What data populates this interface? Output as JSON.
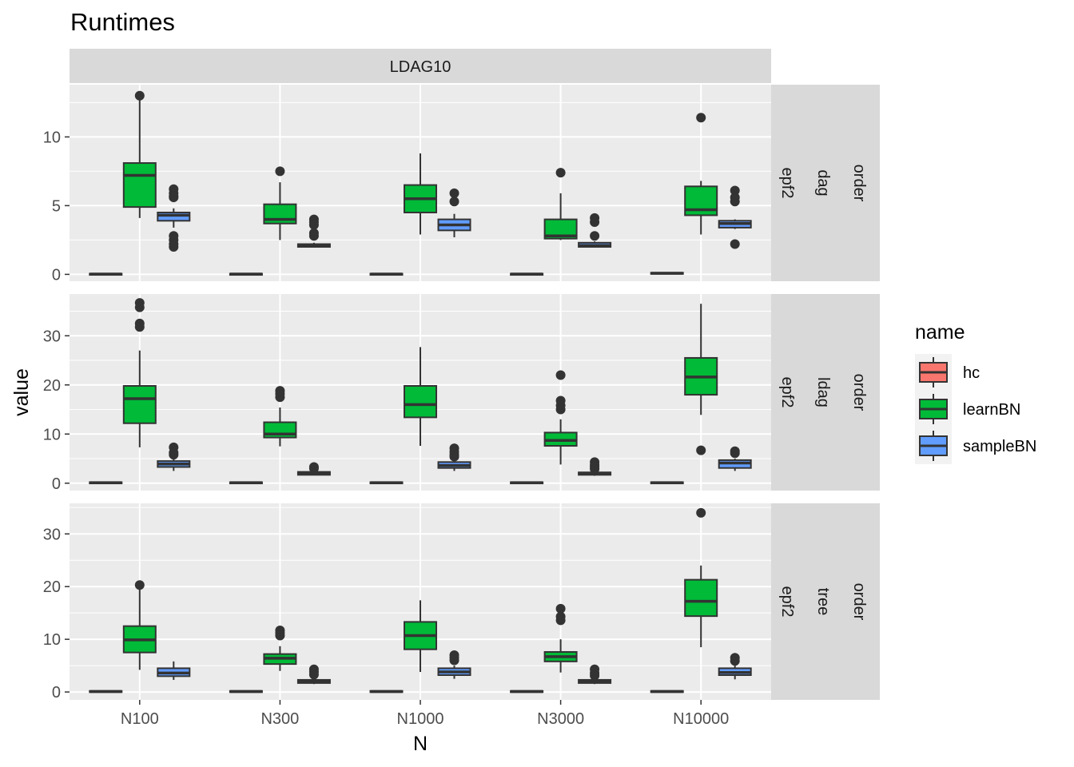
{
  "chart_data": {
    "type": "box",
    "title": "Runtimes",
    "xlabel": "N",
    "ylabel": "value",
    "categories": [
      "N100",
      "N300",
      "N1000",
      "N3000",
      "N10000"
    ],
    "column_strip": "LDAG10",
    "legend": {
      "title": "name",
      "placement": "right",
      "entries": [
        {
          "name": "hc",
          "color": "#F8766D"
        },
        {
          "name": "learnBN",
          "color": "#00BA38"
        },
        {
          "name": "sampleBN",
          "color": "#619CFF"
        }
      ]
    },
    "panels": [
      {
        "strip": [
          "epf2",
          "dag",
          "order"
        ],
        "ylim": [
          -0.5,
          13.8
        ],
        "yticks": [
          0,
          5,
          10
        ],
        "boxes": {
          "hc": [
            {
              "min": 0.0,
              "q1": 0.0,
              "median": 0.02,
              "q3": 0.05,
              "max": 0.05,
              "outliers": []
            },
            {
              "min": 0.0,
              "q1": 0.0,
              "median": 0.02,
              "q3": 0.05,
              "max": 0.05,
              "outliers": []
            },
            {
              "min": 0.0,
              "q1": 0.0,
              "median": 0.02,
              "q3": 0.05,
              "max": 0.05,
              "outliers": []
            },
            {
              "min": 0.0,
              "q1": 0.0,
              "median": 0.02,
              "q3": 0.05,
              "max": 0.05,
              "outliers": []
            },
            {
              "min": 0.05,
              "q1": 0.05,
              "median": 0.08,
              "q3": 0.12,
              "max": 0.12,
              "outliers": []
            }
          ],
          "learnBN": [
            {
              "min": 4.1,
              "q1": 4.9,
              "median": 7.2,
              "q3": 8.1,
              "max": 13.0,
              "outliers": [
                13.0
              ]
            },
            {
              "min": 2.5,
              "q1": 3.7,
              "median": 4.0,
              "q3": 5.1,
              "max": 6.7,
              "outliers": [
                7.5
              ]
            },
            {
              "min": 2.9,
              "q1": 4.5,
              "median": 5.5,
              "q3": 6.5,
              "max": 8.8,
              "outliers": []
            },
            {
              "min": 2.5,
              "q1": 2.6,
              "median": 2.8,
              "q3": 4.0,
              "max": 5.9,
              "outliers": [
                7.4
              ]
            },
            {
              "min": 2.9,
              "q1": 4.3,
              "median": 4.7,
              "q3": 6.4,
              "max": 6.8,
              "outliers": [
                11.4
              ]
            }
          ],
          "sampleBN": [
            {
              "min": 3.4,
              "q1": 3.9,
              "median": 4.3,
              "q3": 4.5,
              "max": 4.8,
              "outliers": [
                6.2,
                5.9,
                5.7,
                5.6,
                2.8,
                2.5,
                2.2,
                2.0
              ]
            },
            {
              "min": 2.0,
              "q1": 2.0,
              "median": 2.1,
              "q3": 2.2,
              "max": 2.3,
              "outliers": [
                4.0,
                3.8,
                3.6,
                3.0,
                2.8
              ]
            },
            {
              "min": 2.7,
              "q1": 3.2,
              "median": 3.6,
              "q3": 4.0,
              "max": 4.4,
              "outliers": [
                5.9,
                5.3
              ]
            },
            {
              "min": 2.0,
              "q1": 2.0,
              "median": 2.1,
              "q3": 2.3,
              "max": 2.4,
              "outliers": [
                4.1,
                3.8,
                2.8
              ]
            },
            {
              "min": 3.3,
              "q1": 3.4,
              "median": 3.7,
              "q3": 3.9,
              "max": 4.0,
              "outliers": [
                6.1,
                5.6,
                5.3,
                2.2
              ]
            }
          ]
        }
      },
      {
        "strip": [
          "epf2",
          "ldag",
          "order"
        ],
        "ylim": [
          -1.5,
          38.5
        ],
        "yticks": [
          0,
          10,
          20,
          30
        ],
        "boxes": {
          "hc": [
            {
              "min": 0.0,
              "q1": 0.0,
              "median": 0.1,
              "q3": 0.2,
              "max": 0.2,
              "outliers": []
            },
            {
              "min": 0.0,
              "q1": 0.0,
              "median": 0.1,
              "q3": 0.2,
              "max": 0.2,
              "outliers": []
            },
            {
              "min": 0.0,
              "q1": 0.0,
              "median": 0.1,
              "q3": 0.2,
              "max": 0.2,
              "outliers": []
            },
            {
              "min": 0.0,
              "q1": 0.0,
              "median": 0.1,
              "q3": 0.2,
              "max": 0.2,
              "outliers": []
            },
            {
              "min": 0.0,
              "q1": 0.0,
              "median": 0.1,
              "q3": 0.2,
              "max": 0.2,
              "outliers": []
            }
          ],
          "learnBN": [
            {
              "min": 7.3,
              "q1": 12.2,
              "median": 17.2,
              "q3": 19.8,
              "max": 27.0,
              "outliers": [
                36.7,
                35.8,
                32.5,
                31.8
              ]
            },
            {
              "min": 7.5,
              "q1": 9.3,
              "median": 10.0,
              "q3": 12.4,
              "max": 15.4,
              "outliers": [
                18.8,
                18.2,
                17.5
              ]
            },
            {
              "min": 7.6,
              "q1": 13.4,
              "median": 16.0,
              "q3": 19.8,
              "max": 27.7,
              "outliers": []
            },
            {
              "min": 3.8,
              "q1": 7.6,
              "median": 8.7,
              "q3": 10.3,
              "max": 13.0,
              "outliers": [
                22.0,
                16.8,
                15.8,
                15.0
              ]
            },
            {
              "min": 13.9,
              "q1": 18.0,
              "median": 21.6,
              "q3": 25.5,
              "max": 36.5,
              "outliers": [
                6.7
              ]
            }
          ],
          "sampleBN": [
            {
              "min": 2.5,
              "q1": 3.3,
              "median": 3.9,
              "q3": 4.5,
              "max": 5.0,
              "outliers": [
                7.3,
                6.2,
                5.8
              ]
            },
            {
              "min": 1.6,
              "q1": 1.7,
              "median": 2.0,
              "q3": 2.3,
              "max": 2.5,
              "outliers": [
                3.3,
                3.0
              ]
            },
            {
              "min": 2.5,
              "q1": 3.1,
              "median": 3.6,
              "q3": 4.3,
              "max": 5.0,
              "outliers": [
                7.1,
                6.4,
                5.8,
                5.4
              ]
            },
            {
              "min": 1.5,
              "q1": 1.7,
              "median": 2.0,
              "q3": 2.2,
              "max": 2.5,
              "outliers": [
                4.3,
                3.7,
                3.3,
                2.9
              ]
            },
            {
              "min": 2.5,
              "q1": 3.1,
              "median": 4.1,
              "q3": 4.7,
              "max": 5.0,
              "outliers": [
                6.5,
                6.1
              ]
            }
          ]
        }
      },
      {
        "strip": [
          "epf2",
          "tree",
          "order"
        ],
        "ylim": [
          -1.5,
          35.8
        ],
        "yticks": [
          0,
          10,
          20,
          30
        ],
        "boxes": {
          "hc": [
            {
              "min": 0.0,
              "q1": 0.0,
              "median": 0.1,
              "q3": 0.2,
              "max": 0.2,
              "outliers": []
            },
            {
              "min": 0.0,
              "q1": 0.0,
              "median": 0.1,
              "q3": 0.2,
              "max": 0.2,
              "outliers": []
            },
            {
              "min": 0.0,
              "q1": 0.0,
              "median": 0.1,
              "q3": 0.2,
              "max": 0.2,
              "outliers": []
            },
            {
              "min": 0.0,
              "q1": 0.0,
              "median": 0.1,
              "q3": 0.2,
              "max": 0.2,
              "outliers": []
            },
            {
              "min": 0.0,
              "q1": 0.0,
              "median": 0.1,
              "q3": 0.2,
              "max": 0.2,
              "outliers": []
            }
          ],
          "learnBN": [
            {
              "min": 4.2,
              "q1": 7.5,
              "median": 9.9,
              "q3": 12.5,
              "max": 19.5,
              "outliers": [
                20.3
              ]
            },
            {
              "min": 4.0,
              "q1": 5.3,
              "median": 6.4,
              "q3": 7.2,
              "max": 8.7,
              "outliers": [
                11.7,
                11.2,
                10.7
              ]
            },
            {
              "min": 3.8,
              "q1": 8.1,
              "median": 10.7,
              "q3": 13.3,
              "max": 17.4,
              "outliers": []
            },
            {
              "min": 3.7,
              "q1": 5.8,
              "median": 6.7,
              "q3": 7.6,
              "max": 10.0,
              "outliers": [
                15.8,
                14.3,
                13.6
              ]
            },
            {
              "min": 8.5,
              "q1": 14.4,
              "median": 17.2,
              "q3": 21.3,
              "max": 24.0,
              "outliers": [
                34.0
              ]
            }
          ],
          "sampleBN": [
            {
              "min": 2.3,
              "q1": 3.0,
              "median": 3.6,
              "q3": 4.5,
              "max": 5.8,
              "outliers": []
            },
            {
              "min": 1.5,
              "q1": 1.7,
              "median": 2.0,
              "q3": 2.3,
              "max": 2.6,
              "outliers": [
                4.3,
                3.8,
                3.3
              ]
            },
            {
              "min": 2.5,
              "q1": 3.2,
              "median": 3.8,
              "q3": 4.5,
              "max": 5.0,
              "outliers": [
                7.0,
                6.5,
                6.0
              ]
            },
            {
              "min": 1.5,
              "q1": 1.7,
              "median": 2.0,
              "q3": 2.3,
              "max": 2.5,
              "outliers": [
                4.3,
                3.6,
                3.1
              ]
            },
            {
              "min": 2.4,
              "q1": 3.2,
              "median": 3.7,
              "q3": 4.5,
              "max": 5.0,
              "outliers": [
                6.5,
                5.9
              ]
            }
          ]
        }
      }
    ]
  }
}
